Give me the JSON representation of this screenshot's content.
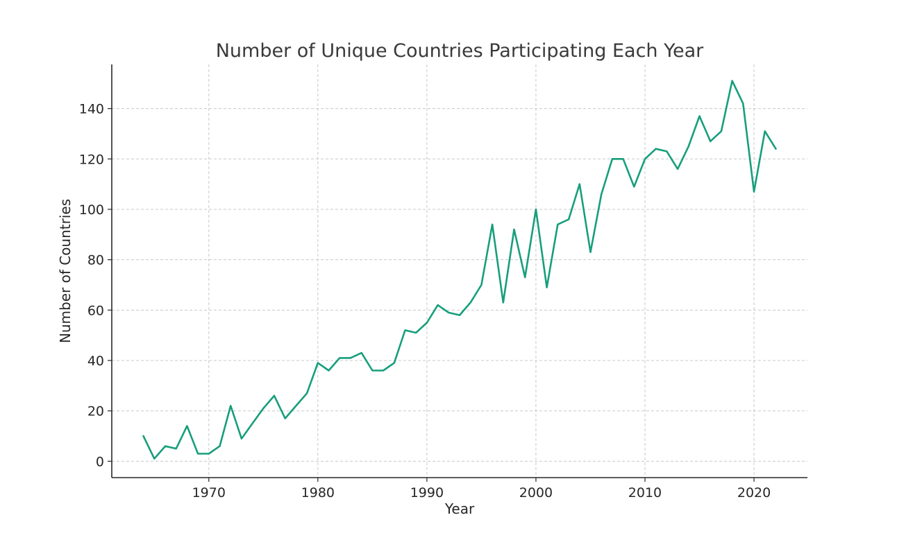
{
  "chart_data": {
    "type": "line",
    "title": "Number of Unique Countries Participating Each Year",
    "xlabel": "Year",
    "ylabel": "Number of Countries",
    "xlim": [
      1961.1,
      2024.9
    ],
    "ylim": [
      -6.5,
      157.5
    ],
    "x_ticks": [
      1970,
      1980,
      1990,
      2000,
      2010,
      2020
    ],
    "y_ticks": [
      0,
      20,
      40,
      60,
      80,
      100,
      120,
      140
    ],
    "grid": true,
    "line_color": "#179e7c",
    "series": [
      {
        "x": [
          1964,
          1965,
          1966,
          1967,
          1968,
          1969,
          1970,
          1971,
          1972,
          1973,
          1974,
          1975,
          1976,
          1977,
          1978,
          1979,
          1980,
          1981,
          1982,
          1983,
          1984,
          1985,
          1986,
          1987,
          1988,
          1989,
          1990,
          1991,
          1992,
          1993,
          1994,
          1995,
          1996,
          1997,
          1998,
          1999,
          2000,
          2001,
          2002,
          2003,
          2004,
          2005,
          2006,
          2007,
          2008,
          2009,
          2010,
          2011,
          2012,
          2013,
          2014,
          2015,
          2016,
          2017,
          2018,
          2019,
          2020,
          2021,
          2022
        ],
        "y": [
          10,
          1,
          6,
          5,
          14,
          3,
          3,
          6,
          22,
          9,
          15,
          21,
          26,
          17,
          22,
          27,
          39,
          36,
          41,
          41,
          43,
          36,
          36,
          39,
          52,
          51,
          55,
          62,
          59,
          58,
          63,
          70,
          94,
          63,
          92,
          73,
          100,
          69,
          94,
          96,
          110,
          83,
          106,
          120,
          120,
          109,
          120,
          124,
          123,
          116,
          125,
          137,
          127,
          131,
          151,
          142,
          107,
          131,
          124
        ]
      }
    ]
  }
}
